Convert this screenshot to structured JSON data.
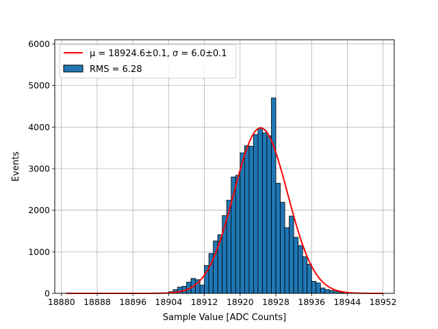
{
  "chart_data": {
    "type": "bar",
    "xlabel": "Sample Value [ADC Counts]",
    "ylabel": "Events",
    "xlim": [
      18878.5,
      18954.5
    ],
    "ylim": [
      0,
      6100
    ],
    "grid": true,
    "x_ticks": [
      18880,
      18888,
      18896,
      18904,
      18912,
      18920,
      18928,
      18936,
      18944,
      18952
    ],
    "y_ticks": [
      0,
      1000,
      2000,
      3000,
      4000,
      5000,
      6000
    ],
    "bin_width": 1,
    "bar_color": "#1f77b4",
    "histogram": {
      "name": "RMS = 6.28",
      "bin_left": [
        18904,
        18905,
        18906,
        18907,
        18908,
        18909,
        18910,
        18911,
        18912,
        18913,
        18914,
        18915,
        18916,
        18917,
        18918,
        18919,
        18920,
        18921,
        18922,
        18923,
        18924,
        18925,
        18926,
        18927,
        18928,
        18929,
        18930,
        18931,
        18932,
        18933,
        18934,
        18935,
        18936,
        18937,
        18938,
        18939,
        18940,
        18941,
        18942,
        18943,
        18944
      ],
      "counts": [
        40,
        90,
        150,
        170,
        270,
        360,
        330,
        200,
        670,
        960,
        1260,
        1410,
        1870,
        2240,
        2800,
        2840,
        3380,
        3550,
        3540,
        3820,
        3970,
        3860,
        3790,
        4700,
        2650,
        2190,
        1580,
        1860,
        1350,
        1150,
        880,
        700,
        290,
        250,
        130,
        90,
        70,
        50,
        20,
        10,
        10
      ]
    },
    "fit": {
      "name": "μ = 18924.6±0.1, σ = 6.0±0.1",
      "color": "#ff0000",
      "mu": 18924.6,
      "sigma": 6.0,
      "amplitude": 3980,
      "x_range": [
        18881,
        18952
      ]
    },
    "legend": {
      "position": "top-left",
      "entries": [
        {
          "label": "μ = 18924.6±0.1, σ = 6.0±0.1",
          "kind": "line"
        },
        {
          "label": "RMS = 6.28",
          "kind": "patch"
        }
      ]
    }
  }
}
